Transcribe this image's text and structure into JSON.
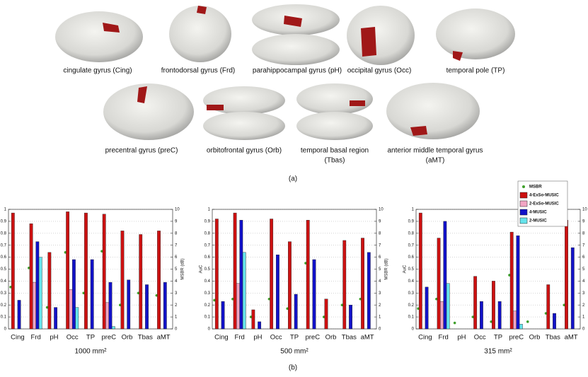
{
  "panel_a": {
    "labels": [
      [
        "cingulate gyrus (Cing)"
      ],
      [
        "frontodorsal gyrus (Frd)"
      ],
      [
        "parahippocampal gyrus (pH)"
      ],
      [
        "occipital gyrus (Occ)"
      ],
      [
        "temporal pole (TP)"
      ],
      [
        "precentral gyrus (preC)"
      ],
      [
        "orbitofrontal gyrus (Orb)"
      ],
      [
        "temporal basal region",
        "(Tbas)"
      ],
      [
        "anterior middle temporal gyrus",
        "(aMT)"
      ]
    ],
    "caption": "(a)"
  },
  "panel_b": {
    "caption": "(b)"
  },
  "chart_data": [
    {
      "type": "bar",
      "xlabel": "1000 mm²",
      "y2label": "MSBR (dB)",
      "categories": [
        "Cing",
        "Frd",
        "pH",
        "Occ",
        "TP",
        "preC",
        "Orb",
        "Tbas",
        "aMT"
      ],
      "ylim": [
        0,
        1
      ],
      "yticks": [
        0,
        0.1,
        0.2,
        0.3,
        0.4,
        0.5,
        0.6,
        0.7,
        0.8,
        0.9,
        1
      ],
      "y2lim": [
        0,
        10
      ],
      "y2ticks": [
        0,
        1,
        2,
        3,
        4,
        5,
        6,
        7,
        8,
        9,
        10
      ],
      "grid": true,
      "series": [
        {
          "name": "MSBR",
          "type": "scatter",
          "axis": "y2",
          "color": "#3f9f2a",
          "values": [
            3.5,
            5.1,
            1.8,
            6.4,
            3.0,
            6.5,
            2.0,
            3.0,
            2.8
          ]
        },
        {
          "name": "4-ExSo-MUSIC",
          "color": "#cc1111",
          "values": [
            0.97,
            0.88,
            0.64,
            0.98,
            0.97,
            0.96,
            0.82,
            0.79,
            0.82
          ]
        },
        {
          "name": "2-ExSo-MUSIC",
          "color": "#f2a6c4",
          "values": [
            0,
            0.39,
            0,
            0.33,
            0,
            0.22,
            0,
            0,
            0
          ]
        },
        {
          "name": "4-MUSIC",
          "color": "#1212c8",
          "values": [
            0.24,
            0.73,
            0.18,
            0.58,
            0.58,
            0.39,
            0.41,
            0.37,
            0.39
          ]
        },
        {
          "name": "2-MUSIC",
          "color": "#66e4ec",
          "values": [
            0,
            0.6,
            0,
            0.18,
            0,
            0.02,
            0,
            0,
            0
          ]
        }
      ]
    },
    {
      "type": "bar",
      "xlabel": "500 mm²",
      "ylabel": "AuC",
      "y2label": "MSBR (dB)",
      "categories": [
        "Cing",
        "Frd",
        "pH",
        "Occ",
        "TP",
        "preC",
        "Orb",
        "Tbas",
        "aMT"
      ],
      "ylim": [
        0,
        1
      ],
      "yticks": [
        0,
        0.1,
        0.2,
        0.3,
        0.4,
        0.5,
        0.6,
        0.7,
        0.8,
        0.9,
        1
      ],
      "y2lim": [
        0,
        10
      ],
      "y2ticks": [
        0,
        1,
        2,
        3,
        4,
        5,
        6,
        7,
        8,
        9,
        10
      ],
      "grid": true,
      "series": [
        {
          "name": "MSBR",
          "type": "scatter",
          "axis": "y2",
          "color": "#3f9f2a",
          "values": [
            2.4,
            2.5,
            1.0,
            2.5,
            1.7,
            5.5,
            1.0,
            2.0,
            2.5
          ]
        },
        {
          "name": "4-ExSo-MUSIC",
          "color": "#cc1111",
          "values": [
            0.92,
            0.97,
            0.16,
            0.92,
            0.73,
            0.91,
            0.25,
            0.74,
            0.76
          ]
        },
        {
          "name": "2-ExSo-MUSIC",
          "color": "#f2a6c4",
          "values": [
            0,
            0.38,
            0,
            0,
            0,
            0,
            0,
            0,
            0
          ]
        },
        {
          "name": "4-MUSIC",
          "color": "#1212c8",
          "values": [
            0.23,
            0.91,
            0.06,
            0.62,
            0.29,
            0.58,
            0,
            0.2,
            0.64
          ]
        },
        {
          "name": "2-MUSIC",
          "color": "#66e4ec",
          "values": [
            0,
            0.64,
            0,
            0,
            0,
            0,
            0,
            0,
            0
          ]
        }
      ]
    },
    {
      "type": "bar",
      "xlabel": "315 mm²",
      "ylabel": "AuC",
      "legend": "top-right",
      "categories": [
        "Cing",
        "Frd",
        "pH",
        "Occ",
        "TP",
        "preC",
        "Orb",
        "Tbas",
        "aMT"
      ],
      "ylim": [
        0,
        1
      ],
      "yticks": [
        0,
        0.1,
        0.2,
        0.3,
        0.4,
        0.5,
        0.6,
        0.7,
        0.8,
        0.9,
        1
      ],
      "y2lim": [
        0,
        10
      ],
      "y2ticks": [
        0,
        1,
        2,
        3,
        4,
        5,
        6,
        7,
        8,
        9,
        10
      ],
      "grid": true,
      "series": [
        {
          "name": "MSBR",
          "type": "scatter",
          "axis": "y2",
          "color": "#3f9f2a",
          "values": [
            1.7,
            2.5,
            0.5,
            1.0,
            0.6,
            4.5,
            0.6,
            1.3,
            2.0
          ]
        },
        {
          "name": "4-ExSo-MUSIC",
          "color": "#cc1111",
          "values": [
            0.97,
            0.76,
            0,
            0.44,
            0.4,
            0.81,
            0,
            0.37,
            0.91
          ]
        },
        {
          "name": "2-ExSo-MUSIC",
          "color": "#f2a6c4",
          "values": [
            0,
            0.23,
            0,
            0,
            0,
            0.15,
            0,
            0,
            0
          ]
        },
        {
          "name": "4-MUSIC",
          "color": "#1212c8",
          "values": [
            0.35,
            0.9,
            0,
            0.23,
            0.23,
            0.78,
            0,
            0.13,
            0.68
          ]
        },
        {
          "name": "2-MUSIC",
          "color": "#66e4ec",
          "values": [
            0,
            0.38,
            0,
            0,
            0,
            0.04,
            0,
            0,
            0
          ]
        }
      ]
    }
  ]
}
